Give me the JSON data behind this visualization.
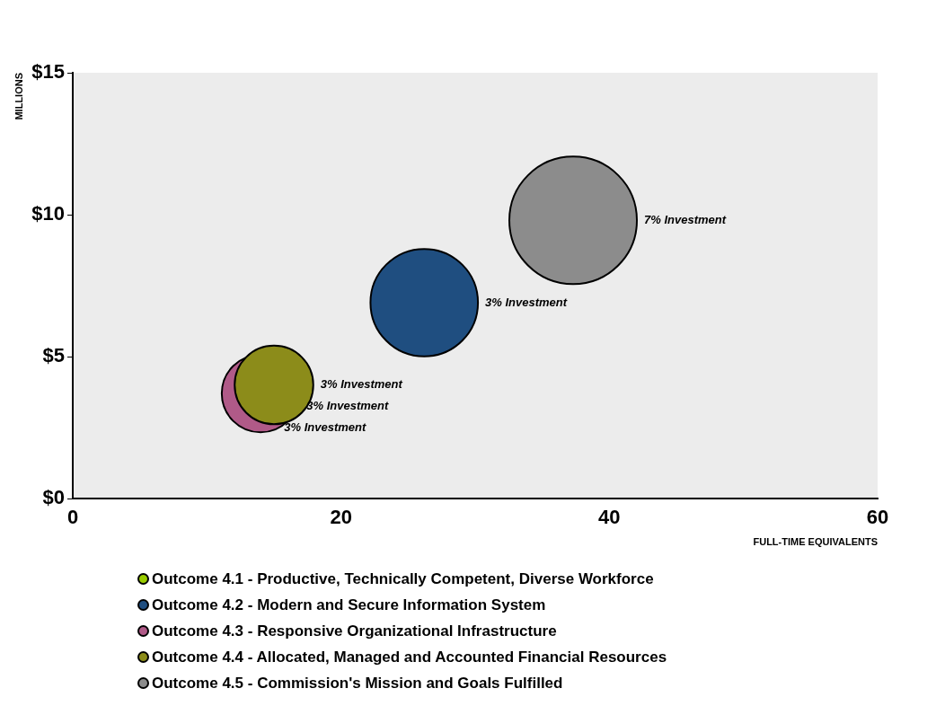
{
  "chart_data": {
    "type": "bubble",
    "xlabel": "FULL-TIME EQUIVALENTS",
    "ylabel": "MILLIONS",
    "xlim": [
      0,
      60
    ],
    "xticks": [
      0,
      20,
      40,
      60
    ],
    "ylim": [
      0,
      15
    ],
    "yticks": [
      {
        "value": 0,
        "label": "$0"
      },
      {
        "value": 5,
        "label": "$5"
      },
      {
        "value": 10,
        "label": "$10"
      },
      {
        "value": 15,
        "label": "$15"
      }
    ],
    "grid": false,
    "legend": "bottom",
    "series": [
      {
        "name": "Outcome 4.1 - Productive, Technically Competent, Diverse Workforce",
        "color": "#99cc00",
        "x": [
          null
        ],
        "values": [
          null
        ],
        "sizes": [
          null
        ]
      },
      {
        "name": "Outcome 4.2 - Modern and Secure Information System",
        "color": "#1f4e80",
        "x": [
          26.2
        ],
        "values": [
          6.9
        ],
        "sizes": [
          0.71
        ]
      },
      {
        "name": "Outcome 4.3 - Responsive Organizational Infrastructure",
        "color": "#b05a88",
        "x": [
          14
        ],
        "values": [
          3.7
        ],
        "sizes": [
          0.37
        ]
      },
      {
        "name": "Outcome 4.4 - Allocated, Managed and Accounted Financial Resources",
        "color": "#8c8c1a",
        "x": [
          15
        ],
        "values": [
          4.0
        ],
        "sizes": [
          0.38
        ]
      },
      {
        "name": "Outcome 4.5 - Commission's Mission and Goals Fulfilled",
        "color": "#8c8c8c",
        "x": [
          37.3
        ],
        "values": [
          9.8
        ],
        "sizes": [
          1
        ]
      }
    ],
    "annotations": [
      "7% Investment",
      "3% Investment",
      "3% Investment",
      "3% Investment",
      "3% Investment"
    ]
  }
}
